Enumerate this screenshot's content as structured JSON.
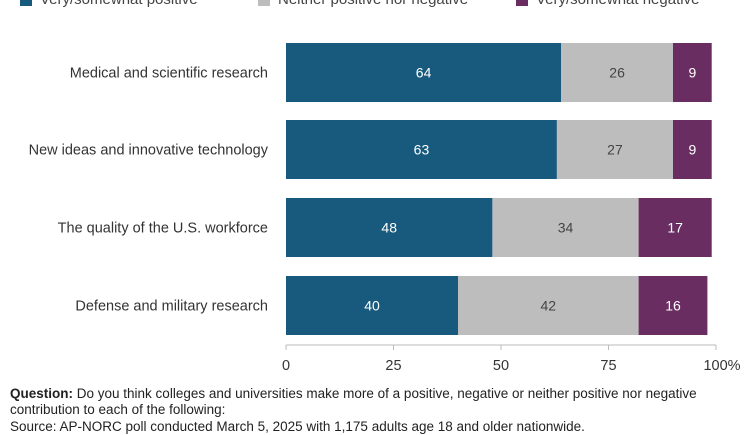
{
  "legend": [
    {
      "label": "Very/somewhat positive",
      "color": "#185a7d"
    },
    {
      "label": "Neither positive nor negative",
      "color": "#bdbdbd"
    },
    {
      "label": "Very/somewhat negative",
      "color": "#6a2d62"
    }
  ],
  "chart_data": {
    "type": "bar",
    "orientation": "horizontal",
    "stacked": true,
    "categories": [
      "Medical and scientific research",
      "New ideas and innovative technology",
      "The quality of the U.S. workforce",
      "Defense and military research"
    ],
    "series": [
      {
        "name": "Very/somewhat positive",
        "color": "#185a7d",
        "values": [
          64,
          63,
          48,
          40
        ]
      },
      {
        "name": "Neither positive nor negative",
        "color": "#bdbdbd",
        "values": [
          26,
          27,
          34,
          42
        ]
      },
      {
        "name": "Very/somewhat negative",
        "color": "#6a2d62",
        "values": [
          9,
          9,
          17,
          16
        ]
      }
    ],
    "xlim": [
      0,
      100
    ],
    "xticks": [
      "0",
      "25",
      "50",
      "75",
      "100%"
    ],
    "xtick_values": [
      0,
      25,
      50,
      75,
      100
    ],
    "legend_position": "top",
    "grid": false
  },
  "question": {
    "label": "Question:",
    "text": "Do you think colleges and universities make more of a  positive, negative or neither positive nor negative contribution to each of the following:"
  },
  "source_text": "Source: AP-NORC poll conducted March 5, 2025 with 1,175 adults age 18 and older nationwide."
}
